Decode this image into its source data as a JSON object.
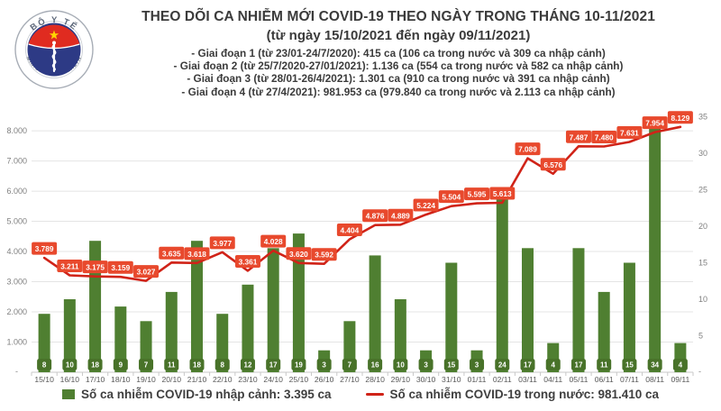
{
  "header": {
    "title": "THEO DÕI CA NHIỄM MỚI COVID-19 THEO NGÀY TRONG THÁNG 10-11/2021",
    "subtitle": "(từ ngày 15/10/2021 đến ngày 09/11/2021)",
    "notes": [
      "- Giai đoạn 1 (từ 23/01-24/7/2020): 415 ca (106 ca trong nước và 309 ca nhập cảnh)",
      "- Giai đoạn 2 (từ 25/7/2020-27/01/2021): 1.136 ca (554 ca trong nước và 582 ca nhập cảnh)",
      "- Giai đoạn 3 (từ 28/01-26/4/2021): 1.301 ca (910 ca trong nước và 391 ca nhập cảnh)",
      "- Giai đoạn 4 (từ 27/4/2021): 981.953 ca (979.840 ca trong nước và 2.113 ca nhập cảnh)"
    ],
    "logo": {
      "top_text": "BỘ Y TẾ",
      "bottom_text": "MINISTRY OF HEALTH"
    }
  },
  "chart_data": {
    "type": "bar",
    "subtype": "bar+line combo, dual axis",
    "categories": [
      "15/10",
      "16/10",
      "17/10",
      "18/10",
      "19/10",
      "20/10",
      "21/10",
      "22/10",
      "23/10",
      "24/10",
      "25/10",
      "26/10",
      "27/10",
      "28/10",
      "29/10",
      "30/10",
      "31/10",
      "01/11",
      "02/11",
      "03/11",
      "04/11",
      "05/11",
      "06/11",
      "07/11",
      "08/11",
      "09/11"
    ],
    "series": [
      {
        "name": "Số ca nhiễm COVID-19 nhập cảnh",
        "type": "bar",
        "axis": "right",
        "color": "#4f7f31",
        "label_bg": "#487229",
        "label_color": "#ffffff",
        "values": [
          8,
          10,
          18,
          9,
          7,
          11,
          18,
          8,
          12,
          17,
          19,
          3,
          7,
          16,
          10,
          3,
          15,
          3,
          24,
          17,
          4,
          17,
          11,
          15,
          34,
          4
        ]
      },
      {
        "name": "Số ca nhiễm COVID-19 trong nước",
        "type": "line",
        "axis": "left",
        "color": "#d02318",
        "label_bg": "#e8492d",
        "label_color": "#ffffff",
        "values": [
          3789,
          3211,
          3175,
          3159,
          3027,
          3635,
          3618,
          3977,
          3361,
          4028,
          3620,
          3592,
          4404,
          4876,
          4889,
          5224,
          5504,
          5595,
          5613,
          7089,
          6576,
          7487,
          7480,
          7631,
          7954,
          8129
        ],
        "labels": [
          "3.789",
          "3.211",
          "3.175",
          "3.159",
          "3.027",
          "3.635",
          "3.618",
          "3.977",
          "3.361",
          "4.028",
          "3.620",
          "3.592",
          "4.404",
          "4.876",
          "4.889",
          "5.224",
          "5.504",
          "5.595",
          "5.613",
          "7.089",
          "6.576",
          "7.487",
          "7.480",
          "7.631",
          "7.954",
          "8.129"
        ]
      }
    ],
    "left_axis": {
      "ticks": [
        "8.000",
        "7.000",
        "6.000",
        "5.000",
        "4.000",
        "3.000",
        "2.000",
        "1.000"
      ],
      "zero_label": "-",
      "max": 8600,
      "tick_interval": 1000
    },
    "right_axis": {
      "ticks": [
        "35",
        "30",
        "25",
        "20",
        "15",
        "10",
        "5"
      ],
      "zero_label": "-",
      "max": 35,
      "tick_interval": 5
    },
    "grid": "horizontal",
    "legend_position": "bottom",
    "legend": [
      {
        "swatch": "square",
        "color": "#4f7f31",
        "label": "Số ca nhiễm COVID-19 nhập cảnh: 3.395 ca"
      },
      {
        "swatch": "line",
        "color": "#d02318",
        "label": "Số ca nhiễm COVID-19 trong nước: 981.410 ca"
      }
    ]
  }
}
